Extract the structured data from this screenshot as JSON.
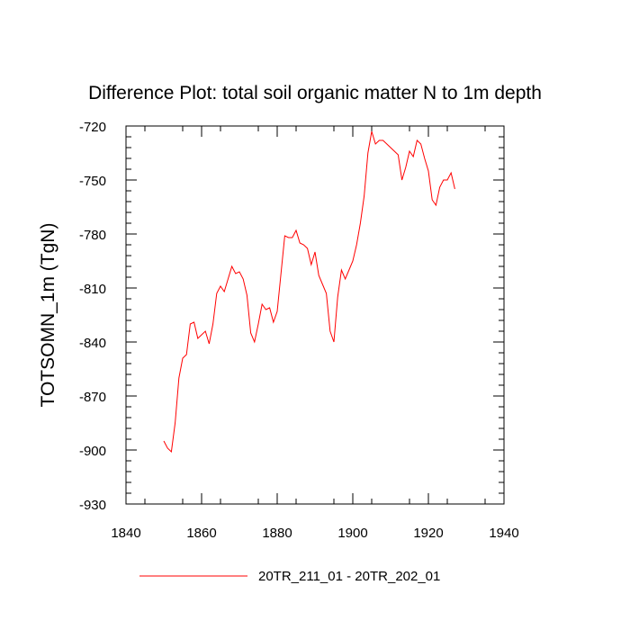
{
  "chart_data": {
    "type": "line",
    "title": "Difference Plot: total soil organic matter N to 1m depth",
    "xlabel": "",
    "ylabel": "TOTSOMN_1m  (TgN)",
    "xlim": [
      1840,
      1940
    ],
    "ylim": [
      -930,
      -720
    ],
    "xticks": [
      1840,
      1860,
      1880,
      1900,
      1920,
      1940
    ],
    "yticks": [
      -720,
      -750,
      -780,
      -810,
      -840,
      -870,
      -900,
      -930
    ],
    "xtick_labels": [
      "1840",
      "1860",
      "1880",
      "1900",
      "1920",
      "1940"
    ],
    "ytick_labels": [
      "-720",
      "-750",
      "-780",
      "-810",
      "-840",
      "-870",
      "-900",
      "-930"
    ],
    "legend_position": "bottom-center",
    "grid": false,
    "series": [
      {
        "name": "20TR_211_01 - 20TR_202_01",
        "color": "#ff0000",
        "x": [
          1850,
          1851,
          1852,
          1853,
          1854,
          1855,
          1856,
          1857,
          1858,
          1859,
          1860,
          1861,
          1862,
          1863,
          1864,
          1865,
          1866,
          1867,
          1868,
          1869,
          1870,
          1871,
          1872,
          1873,
          1874,
          1875,
          1876,
          1877,
          1878,
          1879,
          1880,
          1881,
          1882,
          1883,
          1884,
          1885,
          1886,
          1887,
          1888,
          1889,
          1890,
          1891,
          1892,
          1893,
          1894,
          1895,
          1896,
          1897,
          1898,
          1899,
          1900,
          1901,
          1902,
          1903,
          1904,
          1905,
          1906,
          1907,
          1908,
          1909,
          1910,
          1911,
          1912,
          1913,
          1914,
          1915,
          1916,
          1917,
          1918,
          1919,
          1920,
          1921,
          1922,
          1923,
          1924,
          1925,
          1926,
          1927
        ],
        "y": [
          -895,
          -899,
          -901,
          -885,
          -860,
          -849,
          -847,
          -830,
          -829,
          -838,
          -836,
          -834,
          -841,
          -830,
          -813,
          -809,
          -812,
          -805,
          -798,
          -802,
          -801,
          -805,
          -814,
          -835,
          -840,
          -830,
          -819,
          -822,
          -821,
          -829,
          -823,
          -802,
          -781,
          -782,
          -782,
          -778,
          -785,
          -786,
          -788,
          -797,
          -790,
          -803,
          -808,
          -813,
          -834,
          -840,
          -815,
          -800,
          -805,
          -800,
          -795,
          -786,
          -774,
          -759,
          -735,
          -723,
          -730,
          -728,
          -728,
          -730,
          -732,
          -734,
          -736,
          -750,
          -743,
          -734,
          -737,
          -728,
          -730,
          -738,
          -745,
          -761,
          -764,
          -754,
          -750,
          -750,
          -746,
          -755
        ]
      }
    ]
  }
}
